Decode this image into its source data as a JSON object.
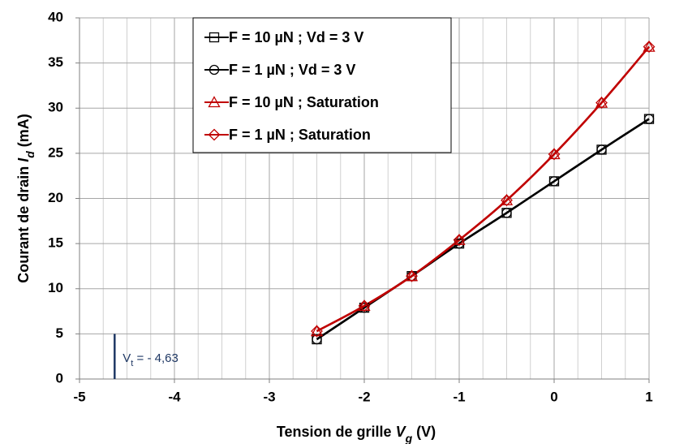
{
  "chart_data": {
    "type": "line",
    "x_label": [
      {
        "text": "Tension de grille "
      },
      {
        "text": "V",
        "italic": true
      },
      {
        "text": "g",
        "italic": true,
        "sub": true
      },
      {
        "text": " (V)"
      }
    ],
    "y_label": [
      {
        "text": "Courant de drain "
      },
      {
        "text": "I",
        "italic": true
      },
      {
        "text": "d",
        "italic": true,
        "sub": true
      },
      {
        "text": " (mA)"
      }
    ],
    "x": [
      -2.5,
      -2,
      -1.5,
      -1,
      -0.5,
      0,
      0.5,
      1
    ],
    "series": [
      {
        "name": "F = 10 µN ; Vd = 3 V",
        "color": "#000000",
        "marker": "square",
        "values": [
          4.4,
          7.9,
          11.4,
          15.0,
          18.4,
          21.9,
          25.4,
          28.8
        ]
      },
      {
        "name": "F = 1 µN ; Vd = 3 V",
        "color": "#000000",
        "marker": "circle",
        "values": [
          4.4,
          7.9,
          11.4,
          15.0,
          18.4,
          21.9,
          25.4,
          28.8
        ]
      },
      {
        "name": "F = 10 µN ; Saturation",
        "color": "#c00000",
        "marker": "triangle",
        "values": [
          5.3,
          8.1,
          11.4,
          15.4,
          19.8,
          24.9,
          30.6,
          36.8
        ]
      },
      {
        "name": "F = 1 µN ; Saturation",
        "color": "#c00000",
        "marker": "diamond",
        "values": [
          5.3,
          8.1,
          11.4,
          15.4,
          19.8,
          24.9,
          30.6,
          36.8
        ]
      }
    ],
    "xlim": [
      -5,
      1
    ],
    "xticks": [
      -5,
      -4,
      -3,
      -2,
      -1,
      0,
      1
    ],
    "x_minor_grid_step": 0.25,
    "ylim": [
      0,
      40
    ],
    "yticks": [
      0,
      5,
      10,
      15,
      20,
      25,
      30,
      35,
      40
    ],
    "grid": true,
    "smooth": true,
    "legend_position": "top",
    "annotation": {
      "x": -4.63,
      "y_top": 5,
      "color": "#1f3864",
      "text": "V",
      "sub": "t",
      "rest": " = - 4,63"
    }
  }
}
